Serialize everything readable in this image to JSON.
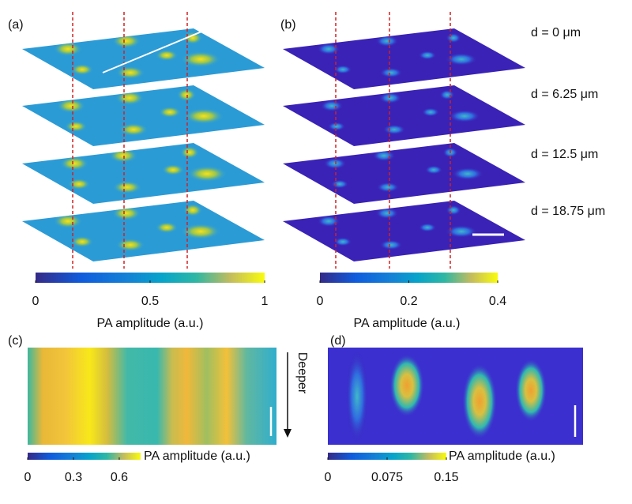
{
  "panels": {
    "a": {
      "label": "(a)",
      "colorbar": {
        "range": [
          0,
          1
        ],
        "ticks": [
          0,
          0.5,
          1
        ],
        "label": "PA amplitude (a.u.)"
      }
    },
    "b": {
      "label": "(b)",
      "depths": [
        "d = 0 μm",
        "d = 6.25 μm",
        "d = 12.5 μm",
        "d = 18.75 μm"
      ],
      "colorbar": {
        "range": [
          0,
          0.4
        ],
        "ticks": [
          0,
          0.2,
          0.4
        ],
        "label": "PA amplitude (a.u.)"
      }
    },
    "c": {
      "label": "(c)",
      "annotation": "Deeper",
      "colorbar": {
        "range": [
          0,
          0.74
        ],
        "ticks": [
          0,
          0.3,
          0.6
        ],
        "label": "PA amplitude (a.u.)"
      }
    },
    "d": {
      "label": "(d)",
      "colorbar": {
        "range": [
          0,
          0.15
        ],
        "ticks": [
          0,
          0.075,
          0.15
        ],
        "label": "PA amplitude (a.u.)"
      }
    }
  }
}
